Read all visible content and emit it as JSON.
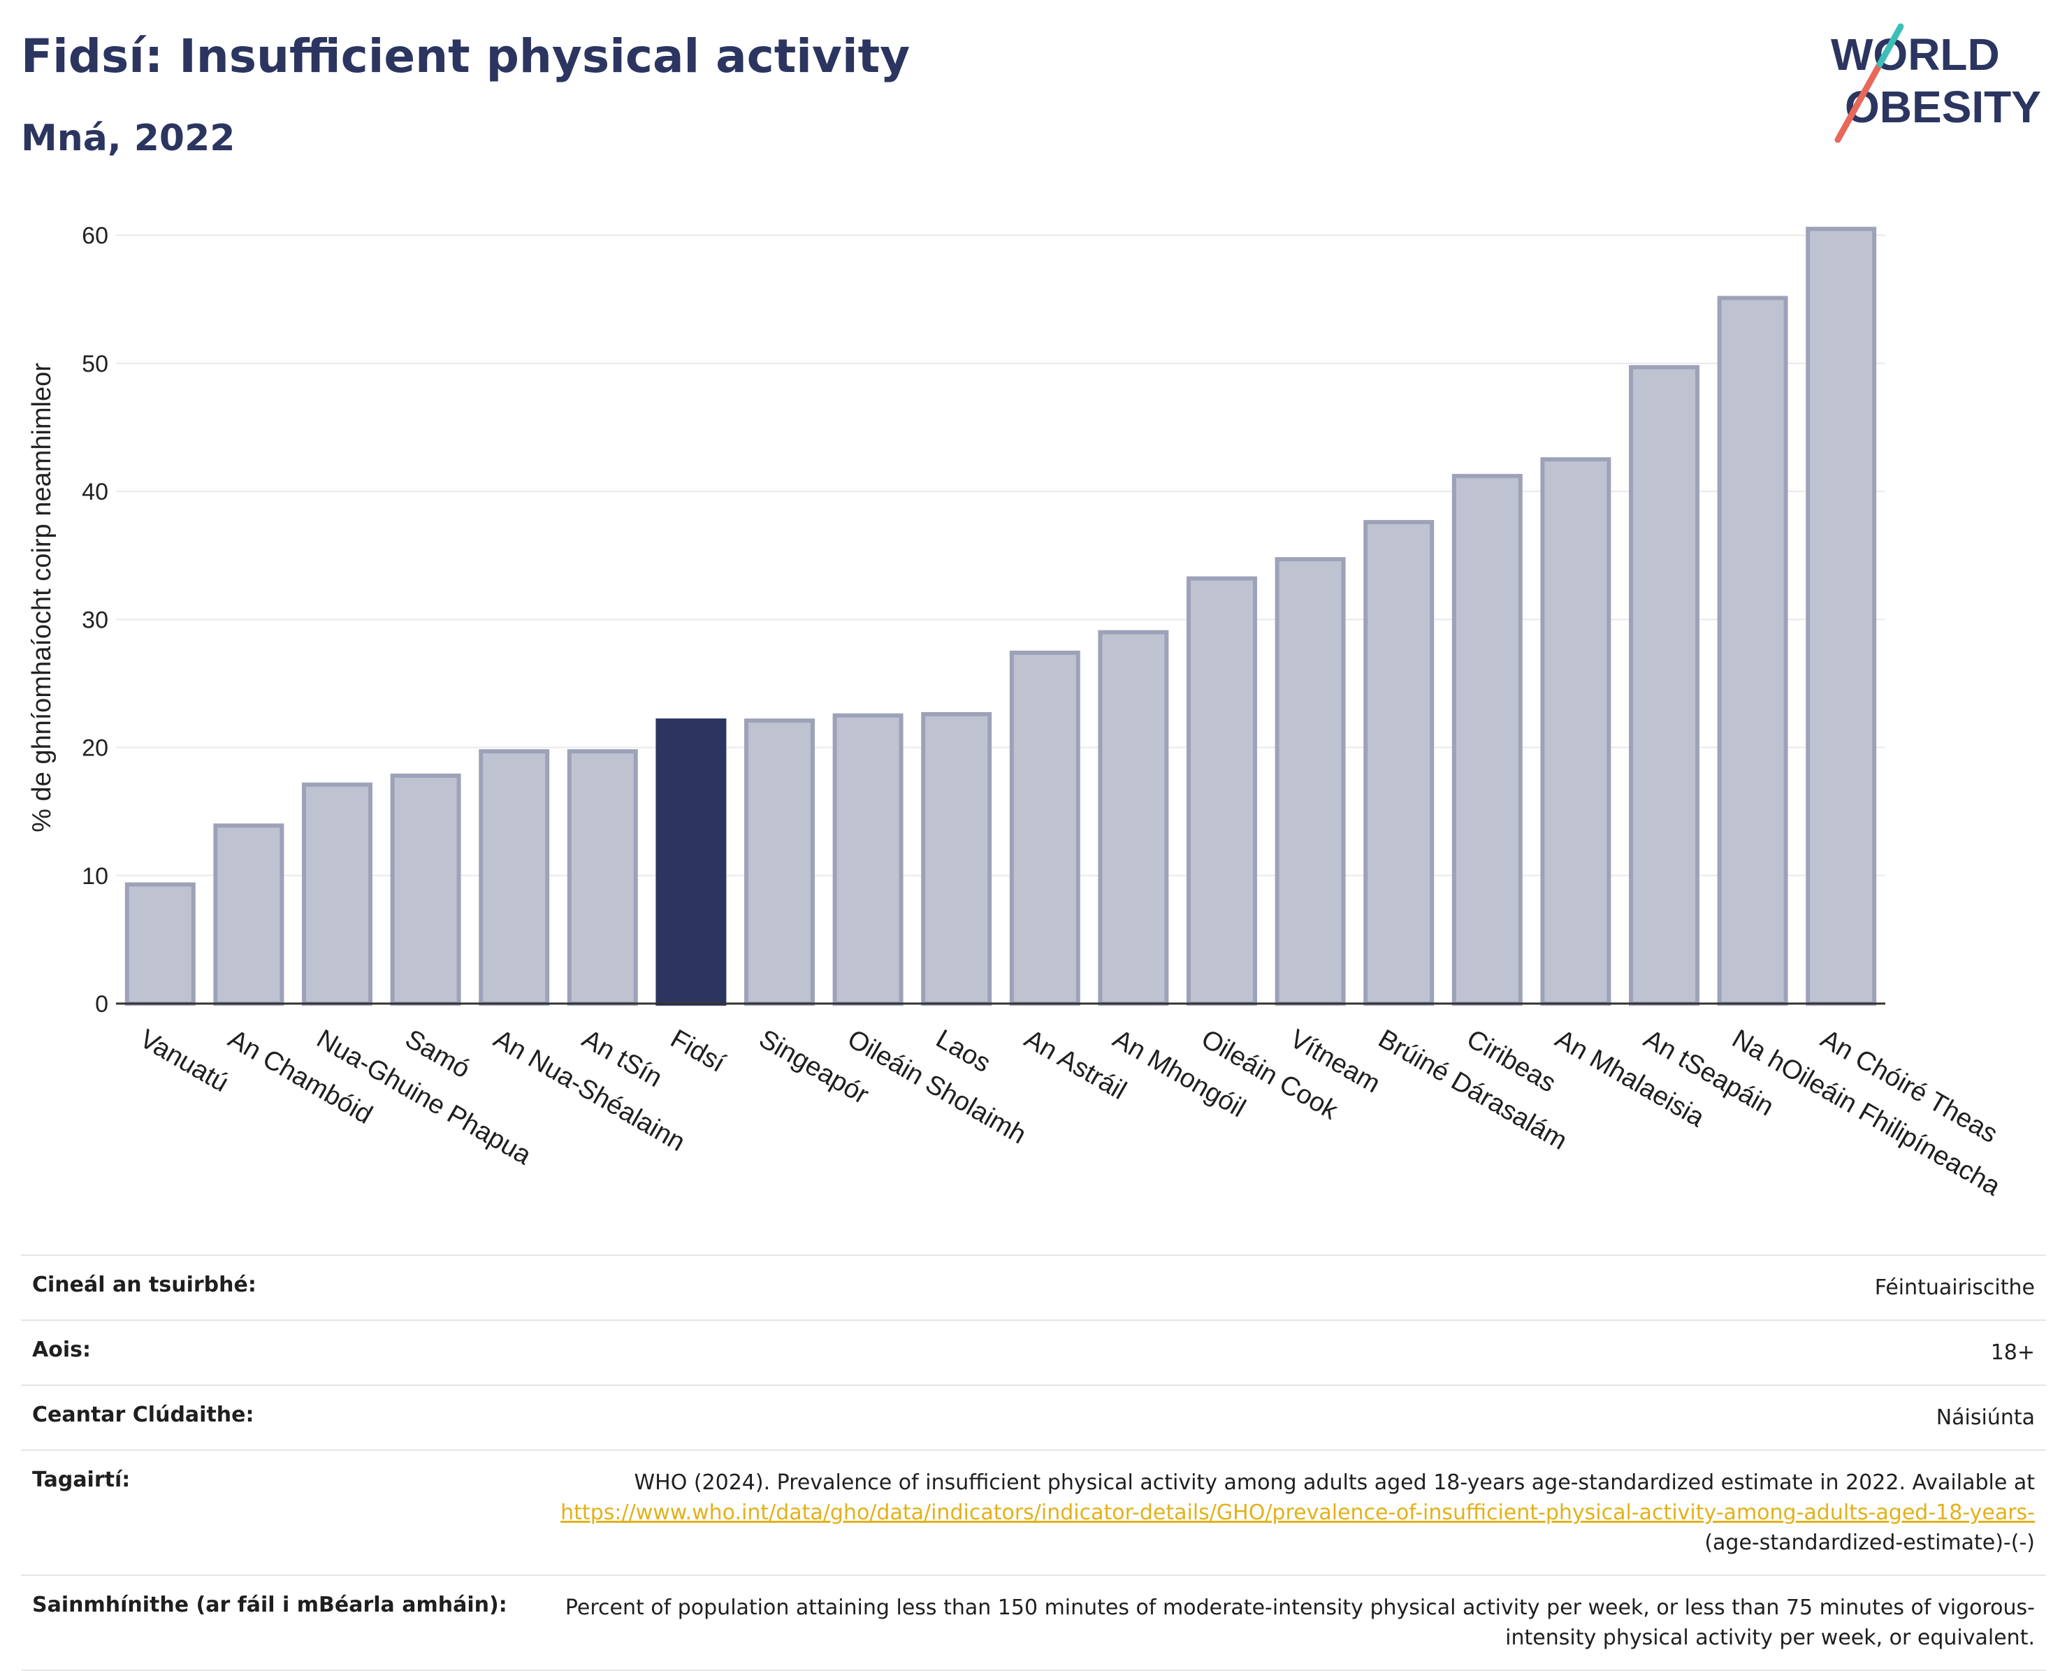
{
  "title": "Fidsí: Insufficient physical activity",
  "subtitle": "Mná, 2022",
  "logo": {
    "line1": "WORLD",
    "line2": "OBESITY",
    "colors": {
      "text": "#2b3560",
      "slash_red": "#e8685a",
      "slash_teal": "#3bbfb8"
    }
  },
  "colors": {
    "bar": "#bfc3d1",
    "bar_stroke": "#9da2b8",
    "highlight": "#2b3560",
    "grid": "#e9e9ee",
    "axis": "#333333",
    "link": "#e2b119"
  },
  "chart_data": {
    "type": "bar",
    "ylabel": "% de ghníomhaíocht coirp neamhimleor",
    "xlabel": "",
    "ylim": [
      0,
      62
    ],
    "yticks": [
      0,
      10,
      20,
      30,
      40,
      50,
      60
    ],
    "grid": true,
    "highlight": "Fidsí",
    "categories": [
      "Vanuatú",
      "An Chambóid",
      "Nua-Ghuine Phapua",
      "Samó",
      "An Nua-Shéalainn",
      "An tSín",
      "Fidsí",
      "Singeapór",
      "Oileáin Sholaimh",
      "Laos",
      "An Astráil",
      "An Mhongóil",
      "Oileáin Cook",
      "Vítneam",
      "Brúiné Dárasalám",
      "Ciribeas",
      "An Mhalaeisia",
      "An tSeapáin",
      "Na hOileáin Fhilipíneacha",
      "An Chóiré Theas"
    ],
    "values": [
      9.3,
      13.9,
      17.1,
      17.8,
      19.7,
      19.7,
      22.1,
      22.1,
      22.5,
      22.6,
      27.4,
      29.0,
      33.2,
      34.7,
      37.6,
      41.2,
      42.5,
      49.7,
      55.1,
      60.5
    ]
  },
  "meta": [
    {
      "label": "Cineál an tsuirbhé:",
      "value": "Féintuairiscithe"
    },
    {
      "label": "Aois:",
      "value": "18+"
    },
    {
      "label": "Ceantar Clúdaithe:",
      "value": "Náisiúnta"
    },
    {
      "label": "Tagairtí:",
      "value": "WHO (2024). Prevalence of insufficient physical activity among adults aged 18-years age-standardized estimate in 2022. Available at",
      "link": "https://www.who.int/data/gho/data/indicators/indicator-details/GHO/prevalence-of-insufficient-physical-activity-among-adults-aged-18-years-",
      "after": "(age-standardized-estimate)-(-)"
    },
    {
      "label": "Sainmhínithe (ar fáil i mBéarla amháin):",
      "value": "Percent of population attaining less than 150 minutes of moderate-intensity physical activity per week, or less than 75 minutes of vigorous-intensity physical activity per week, or equivalent."
    }
  ]
}
